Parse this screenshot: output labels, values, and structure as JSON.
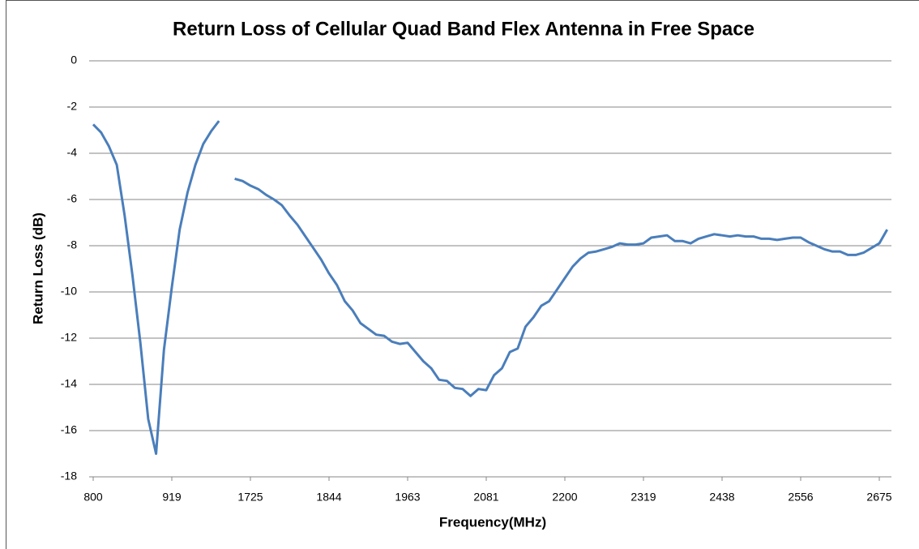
{
  "chart_data": {
    "type": "line",
    "title": "Return Loss of Cellular Quad Band Flex Antenna in Free Space",
    "x_label": "Frequency(MHz)",
    "y_label": "Return Loss (dB)",
    "categories": [
      "800",
      null,
      null,
      null,
      null,
      null,
      null,
      null,
      null,
      null,
      "919",
      null,
      null,
      null,
      null,
      null,
      null,
      null,
      null,
      null,
      "1725",
      null,
      null,
      null,
      null,
      null,
      null,
      null,
      null,
      null,
      "1844",
      null,
      null,
      null,
      null,
      null,
      null,
      null,
      null,
      null,
      "1963",
      null,
      null,
      null,
      null,
      null,
      null,
      null,
      null,
      null,
      "2081",
      null,
      null,
      null,
      null,
      null,
      null,
      null,
      null,
      null,
      "2200",
      null,
      null,
      null,
      null,
      null,
      null,
      null,
      null,
      null,
      "2319",
      null,
      null,
      null,
      null,
      null,
      null,
      null,
      null,
      null,
      "2438",
      null,
      null,
      null,
      null,
      null,
      null,
      null,
      null,
      null,
      "2556",
      null,
      null,
      null,
      null,
      null,
      null,
      null,
      null,
      null,
      "2675",
      null
    ],
    "series": [
      {
        "name": "Return Loss",
        "color": "#4a7ebb",
        "values": [
          -2.75,
          -3.1,
          -3.7,
          -4.5,
          -6.7,
          -9.3,
          -12.2,
          -15.5,
          -17.0,
          -12.5,
          -9.8,
          -7.3,
          -5.7,
          -4.5,
          -3.6,
          -3.05,
          -2.6,
          null,
          -5.1,
          -5.2,
          -5.4,
          -5.55,
          -5.8,
          -6.0,
          -6.25,
          -6.7,
          -7.1,
          -7.6,
          -8.1,
          -8.6,
          -9.2,
          -9.7,
          -10.4,
          -10.8,
          -11.35,
          -11.6,
          -11.85,
          -11.9,
          -12.15,
          -12.25,
          -12.2,
          -12.6,
          -13.0,
          -13.3,
          -13.8,
          -13.85,
          -14.15,
          -14.2,
          -14.5,
          -14.2,
          -14.25,
          -13.6,
          -13.3,
          -12.6,
          -12.45,
          -11.5,
          -11.1,
          -10.6,
          -10.4,
          -9.9,
          -9.4,
          -8.9,
          -8.55,
          -8.3,
          -8.25,
          -8.15,
          -8.05,
          -7.9,
          -7.95,
          -7.95,
          -7.9,
          -7.65,
          -7.6,
          -7.55,
          -7.8,
          -7.8,
          -7.9,
          -7.7,
          -7.6,
          -7.5,
          -7.55,
          -7.6,
          -7.55,
          -7.6,
          -7.6,
          -7.7,
          -7.7,
          -7.75,
          -7.7,
          -7.65,
          -7.65,
          -7.85,
          -8.0,
          -8.15,
          -8.25,
          -8.25,
          -8.4,
          -8.4,
          -8.3,
          -8.1,
          -7.9,
          -7.3
        ]
      }
    ],
    "ylim": [
      -18,
      0
    ],
    "yticks": [
      0,
      -2,
      -4,
      -6,
      -8,
      -10,
      -12,
      -14,
      -16,
      -18
    ],
    "grid": true
  }
}
